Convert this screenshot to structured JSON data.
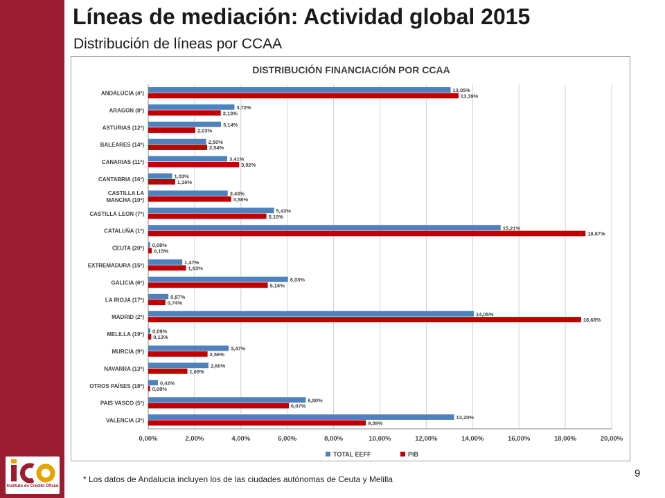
{
  "slide": {
    "title": "Líneas de mediación: Actividad global 2015",
    "subtitle": "Distribución de líneas por CCAA",
    "footnote": "* Los datos de Andalucía incluyen los de las ciudades autónomas de Ceuta y Melilla",
    "page_number": "9",
    "logo_text": "Instituto de Crédito Oficial",
    "accent_color": "#9b1b30"
  },
  "chart_data": {
    "type": "bar",
    "orientation": "horizontal",
    "title": "DISTRIBUCIÓN FINANCIACIÓN POR CCAA",
    "categories": [
      "ANDALUCIA (4º)",
      "ARAGON (8º)",
      "ASTURIAS (12º)",
      "BALEARES (14º)",
      "CANARIAS (11º)",
      "CANTABRIA (16º)",
      "CASTILLA LA MANCHA (10º)",
      "CASTILLA LEON (7º)",
      "CATALUÑA (1º)",
      "CEUTA (20º)",
      "EXTREMADURA (15º)",
      "GALICIA (6º)",
      "LA RIOJA (17º)",
      "MADRID (2º)",
      "MELILLA (19º)",
      "MURCIA (9º)",
      "NAVARRA (13º)",
      "OTROS PAÍSES (18º)",
      "PAIS VASCO (5º)",
      "VALENCIA (3º)"
    ],
    "series": [
      {
        "name": "TOTAL EEFF",
        "color": "#4f81bd",
        "values": [
          13.05,
          3.72,
          3.14,
          2.5,
          3.41,
          1.03,
          3.43,
          5.43,
          15.21,
          0.08,
          1.47,
          6.03,
          0.87,
          14.05,
          0.09,
          3.47,
          2.6,
          0.42,
          6.8,
          13.2
        ],
        "labels": [
          "13,05%",
          "3,72%",
          "3,14%",
          "2,50%",
          "3,41%",
          "1,03%",
          "3,43%",
          "5,43%",
          "15,21%",
          "0,08%",
          "1,47%",
          "6,03%",
          "0,87%",
          "14,05%",
          "0,09%",
          "3,47%",
          "2,60%",
          "0,42%",
          "6,80%",
          "13,20%"
        ]
      },
      {
        "name": "PIB",
        "color": "#c00000",
        "values": [
          13.39,
          3.13,
          2.03,
          2.54,
          3.92,
          1.16,
          3.58,
          5.1,
          18.87,
          0.15,
          1.63,
          5.16,
          0.74,
          18.68,
          0.13,
          2.56,
          1.69,
          0.08,
          6.07,
          9.39
        ],
        "labels": [
          "13,39%",
          "3,13%",
          "2,03%",
          "2,54%",
          "3,92%",
          "1,16%",
          "3,58%",
          "5,10%",
          "18,87%",
          "0,15%",
          "1,63%",
          "5,16%",
          "0,74%",
          "18,68%",
          "0,13%",
          "2,56%",
          "1,69%",
          "0,08%",
          "6,07%",
          "9,39%"
        ]
      }
    ],
    "xlim": [
      0,
      20
    ],
    "xticks": [
      0,
      2,
      4,
      6,
      8,
      10,
      12,
      14,
      16,
      18,
      20
    ],
    "xtick_labels": [
      "0,00%",
      "2,00%",
      "4,00%",
      "6,00%",
      "8,00%",
      "10,00%",
      "12,00%",
      "14,00%",
      "16,00%",
      "18,00%",
      "20,00%"
    ],
    "grid": true,
    "legend_position": "bottom"
  }
}
